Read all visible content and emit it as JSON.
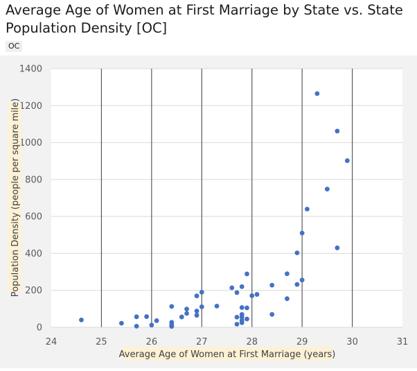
{
  "post": {
    "title": "Average Age of Women at First Marriage by State vs. State Population Density [OC]",
    "flair": "OC"
  },
  "chart_data": {
    "type": "scatter",
    "title": "",
    "xlabel": "Average Age of Women at First Marriage (years)",
    "ylabel": "Population Density (people per square mile)",
    "xlim": [
      24,
      31
    ],
    "ylim": [
      0,
      1400
    ],
    "xticks": [
      24,
      25,
      26,
      27,
      28,
      29,
      30,
      31
    ],
    "yticks": [
      0,
      200,
      400,
      600,
      800,
      1000,
      1200,
      1400
    ],
    "grid": true,
    "marker_color": "#4472c4",
    "label_bg_color": "#fdf1d6",
    "series": [
      {
        "points": [
          [
            24.6,
            40
          ],
          [
            25.4,
            22
          ],
          [
            25.7,
            57
          ],
          [
            25.7,
            6
          ],
          [
            25.9,
            58
          ],
          [
            26.0,
            12
          ],
          [
            26.1,
            36
          ],
          [
            26.4,
            113
          ],
          [
            26.4,
            27
          ],
          [
            26.4,
            14
          ],
          [
            26.4,
            5
          ],
          [
            26.6,
            56
          ],
          [
            26.7,
            99
          ],
          [
            26.7,
            75
          ],
          [
            26.9,
            170
          ],
          [
            26.9,
            88
          ],
          [
            26.9,
            65
          ],
          [
            27.0,
            190
          ],
          [
            27.0,
            111
          ],
          [
            27.3,
            115
          ],
          [
            27.6,
            214
          ],
          [
            27.7,
            188
          ],
          [
            27.7,
            55
          ],
          [
            27.7,
            17
          ],
          [
            27.8,
            220
          ],
          [
            27.8,
            107
          ],
          [
            27.8,
            70
          ],
          [
            27.8,
            56
          ],
          [
            27.8,
            38
          ],
          [
            27.8,
            25
          ],
          [
            27.9,
            289
          ],
          [
            27.9,
            105
          ],
          [
            27.9,
            45
          ],
          [
            28.0,
            171
          ],
          [
            28.1,
            178
          ],
          [
            28.4,
            228
          ],
          [
            28.4,
            70
          ],
          [
            28.7,
            290
          ],
          [
            28.7,
            155
          ],
          [
            28.9,
            403
          ],
          [
            28.9,
            232
          ],
          [
            29.0,
            510
          ],
          [
            29.0,
            256
          ],
          [
            29.1,
            640
          ],
          [
            29.3,
            1265
          ],
          [
            29.5,
            748
          ],
          [
            29.7,
            1062
          ],
          [
            29.7,
            430
          ],
          [
            29.9,
            902
          ]
        ]
      }
    ]
  }
}
